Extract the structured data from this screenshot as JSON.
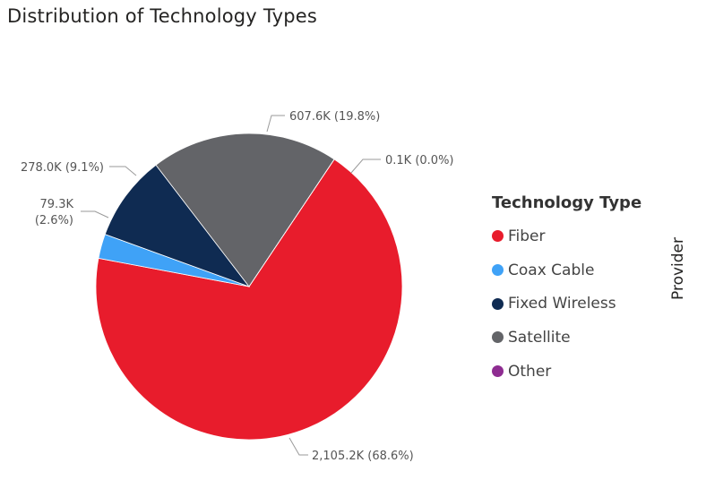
{
  "title": "Distribution of Technology Types",
  "side_label": "Provider",
  "legend": {
    "title": "Technology Type",
    "items": [
      {
        "label": "Fiber",
        "color": "#E81C2C"
      },
      {
        "label": "Coax Cable",
        "color": "#3FA2F7"
      },
      {
        "label": "Fixed Wireless",
        "color": "#0F2B52"
      },
      {
        "label": "Satellite",
        "color": "#636468"
      },
      {
        "label": "Other",
        "color": "#8E2C91"
      }
    ]
  },
  "chart_data": {
    "type": "pie",
    "title": "Distribution of Technology Types",
    "legend_title": "Technology Type",
    "legend_position": "right",
    "slices": [
      {
        "label": "Fiber",
        "value": 2105.2,
        "percent": 68.6,
        "display": "2,105.2K (68.6%)",
        "color": "#E81C2C"
      },
      {
        "label": "Coax Cable",
        "value": 79.3,
        "percent": 2.6,
        "display": "79.3K",
        "display2": "(2.6%)",
        "color": "#3FA2F7"
      },
      {
        "label": "Fixed Wireless",
        "value": 278.0,
        "percent": 9.1,
        "display": "278.0K (9.1%)",
        "color": "#0F2B52"
      },
      {
        "label": "Satellite",
        "value": 607.6,
        "percent": 19.8,
        "display": "607.6K (19.8%)",
        "color": "#636468"
      },
      {
        "label": "Other",
        "value": 0.1,
        "percent": 0.0,
        "display": "0.1K (0.0%)",
        "color": "#8E2C91"
      }
    ]
  }
}
